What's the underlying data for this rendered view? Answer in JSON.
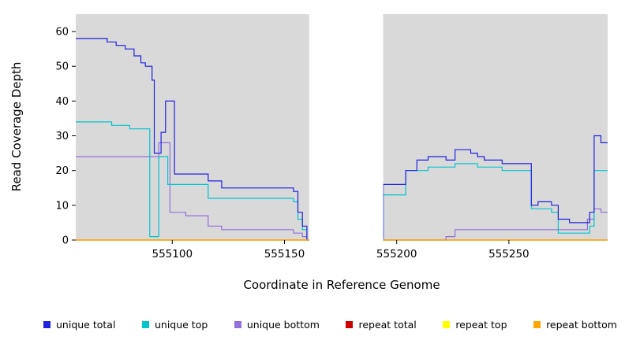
{
  "chart_data": {
    "type": "line",
    "subtype": "step",
    "title": "",
    "xlabel": "Coordinate in Reference Genome",
    "ylabel": "Read Coverage Depth",
    "xlim": [
      555057,
      555294
    ],
    "ylim": [
      0,
      65
    ],
    "x_ticks": [
      555100,
      555150,
      555200,
      555250
    ],
    "y_ticks": [
      0,
      10,
      20,
      30,
      40,
      50,
      60
    ],
    "grid": false,
    "legend_position": "bottom",
    "plot_background": "#d9d9d9",
    "page_background": "#ffffff",
    "gap_region": {
      "x_start": 555161,
      "x_end": 555194
    },
    "series": [
      {
        "id": "unique-bottom",
        "name": "unique bottom",
        "color": "#9370db",
        "points": [
          [
            555057,
            24
          ],
          [
            555094,
            28
          ],
          [
            555099,
            8
          ],
          [
            555106,
            7
          ],
          [
            555116,
            4
          ],
          [
            555122,
            3
          ],
          [
            555154,
            2
          ],
          [
            555158,
            1
          ],
          [
            555160,
            0
          ],
          [
            555222,
            1
          ],
          [
            555226,
            3
          ],
          [
            555283,
            3
          ],
          [
            555285,
            6
          ],
          [
            555288,
            9
          ],
          [
            555291,
            8
          ],
          [
            555294,
            8
          ]
        ]
      },
      {
        "id": "unique-top",
        "name": "unique top",
        "color": "#00c5cd",
        "points": [
          [
            555057,
            34
          ],
          [
            555073,
            33
          ],
          [
            555081,
            32
          ],
          [
            555090,
            1
          ],
          [
            555094,
            24
          ],
          [
            555098,
            16
          ],
          [
            555116,
            12
          ],
          [
            555154,
            11
          ],
          [
            555156,
            6
          ],
          [
            555158,
            3
          ],
          [
            555160,
            0
          ],
          [
            555194,
            13
          ],
          [
            555204,
            20
          ],
          [
            555214,
            21
          ],
          [
            555226,
            22
          ],
          [
            555236,
            21
          ],
          [
            555247,
            20
          ],
          [
            555260,
            9
          ],
          [
            555269,
            8
          ],
          [
            555272,
            2
          ],
          [
            555286,
            4
          ],
          [
            555288,
            20
          ],
          [
            555294,
            20
          ]
        ]
      },
      {
        "id": "unique-total",
        "name": "unique total",
        "color": "#2121de",
        "points": [
          [
            555057,
            58
          ],
          [
            555071,
            57
          ],
          [
            555075,
            56
          ],
          [
            555079,
            55
          ],
          [
            555083,
            53
          ],
          [
            555086,
            51
          ],
          [
            555088,
            50
          ],
          [
            555091,
            46
          ],
          [
            555092,
            25
          ],
          [
            555095,
            31
          ],
          [
            555097,
            40
          ],
          [
            555101,
            19
          ],
          [
            555116,
            17
          ],
          [
            555122,
            15
          ],
          [
            555154,
            14
          ],
          [
            555156,
            8
          ],
          [
            555158,
            4
          ],
          [
            555160,
            0
          ],
          [
            555194,
            16
          ],
          [
            555204,
            20
          ],
          [
            555209,
            23
          ],
          [
            555214,
            24
          ],
          [
            555222,
            23
          ],
          [
            555226,
            26
          ],
          [
            555233,
            25
          ],
          [
            555236,
            24
          ],
          [
            555239,
            23
          ],
          [
            555247,
            22
          ],
          [
            555260,
            10
          ],
          [
            555263,
            11
          ],
          [
            555269,
            10
          ],
          [
            555272,
            6
          ],
          [
            555277,
            5
          ],
          [
            555286,
            8
          ],
          [
            555288,
            30
          ],
          [
            555291,
            28
          ],
          [
            555294,
            28
          ]
        ]
      },
      {
        "id": "repeat-total",
        "name": "repeat total",
        "color": "#cc0000",
        "points": [
          [
            555057,
            0
          ],
          [
            555294,
            0
          ]
        ]
      },
      {
        "id": "repeat-top",
        "name": "repeat top",
        "color": "#ffff00",
        "points": [
          [
            555057,
            0
          ],
          [
            555294,
            0
          ]
        ]
      },
      {
        "id": "repeat-bottom",
        "name": "repeat bottom",
        "color": "#ffa500",
        "points": [
          [
            555057,
            0
          ],
          [
            555294,
            0
          ]
        ]
      }
    ]
  },
  "legend": {
    "items": [
      {
        "label": "unique total",
        "color": "#2121de"
      },
      {
        "label": "unique top",
        "color": "#00c5cd"
      },
      {
        "label": "unique bottom",
        "color": "#9370db"
      },
      {
        "label": "repeat total",
        "color": "#cc0000"
      },
      {
        "label": "repeat top",
        "color": "#ffff00"
      },
      {
        "label": "repeat bottom",
        "color": "#ffa500"
      }
    ]
  }
}
